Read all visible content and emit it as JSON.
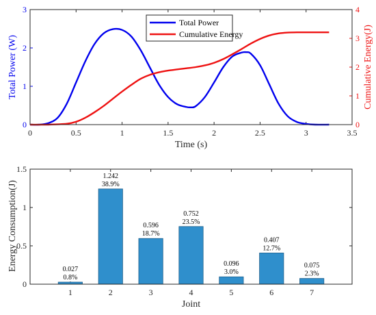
{
  "colors": {
    "power": "#0000EE",
    "energy": "#EE1111",
    "bar": "#2F8FCC",
    "bar_edge": "#1F5F8B",
    "axis": "#262626"
  },
  "chart_data": [
    {
      "type": "line",
      "xlabel": "Time (s)",
      "ylabel_left": "Total Power (W)",
      "ylabel_right": "Cumulative Energy(J)",
      "xlim": [
        0,
        3.5
      ],
      "ylim_left": [
        0,
        3
      ],
      "ylim_right": [
        0,
        4
      ],
      "x_ticks": [
        "0",
        "0.5",
        "1",
        "1.5",
        "2",
        "2.5",
        "3",
        "3.5"
      ],
      "y_left_ticks": [
        "0",
        "1",
        "2",
        "3"
      ],
      "y_right_ticks": [
        "0",
        "1",
        "2",
        "3",
        "4"
      ],
      "legend": "top-center",
      "grid": false,
      "series": [
        {
          "name": "Total Power",
          "axis": "left",
          "x": [
            0,
            0.1,
            0.2,
            0.3,
            0.4,
            0.5,
            0.6,
            0.7,
            0.8,
            0.9,
            1.0,
            1.1,
            1.2,
            1.3,
            1.4,
            1.5,
            1.6,
            1.7,
            1.75,
            1.8,
            1.9,
            2.0,
            2.1,
            2.2,
            2.3,
            2.35,
            2.4,
            2.5,
            2.6,
            2.7,
            2.8,
            2.9,
            3.0,
            3.1,
            3.25
          ],
          "y": [
            0,
            0.0,
            0.04,
            0.18,
            0.55,
            1.1,
            1.65,
            2.1,
            2.38,
            2.49,
            2.47,
            2.3,
            1.95,
            1.5,
            1.05,
            0.72,
            0.53,
            0.46,
            0.45,
            0.48,
            0.72,
            1.1,
            1.5,
            1.78,
            1.88,
            1.89,
            1.85,
            1.55,
            1.05,
            0.55,
            0.22,
            0.07,
            0.02,
            0.0,
            0.0
          ]
        },
        {
          "name": "Cumulative Energy",
          "axis": "right",
          "x": [
            0,
            0.2,
            0.4,
            0.5,
            0.6,
            0.7,
            0.8,
            0.9,
            1.0,
            1.1,
            1.2,
            1.3,
            1.4,
            1.5,
            1.6,
            1.7,
            1.8,
            1.9,
            2.0,
            2.1,
            2.2,
            2.3,
            2.4,
            2.5,
            2.6,
            2.7,
            2.8,
            2.9,
            3.0,
            3.25
          ],
          "y": [
            0,
            0.0,
            0.03,
            0.1,
            0.24,
            0.43,
            0.65,
            0.9,
            1.15,
            1.38,
            1.59,
            1.73,
            1.82,
            1.88,
            1.92,
            1.96,
            2.0,
            2.06,
            2.15,
            2.28,
            2.45,
            2.63,
            2.82,
            2.98,
            3.1,
            3.17,
            3.2,
            3.21,
            3.21,
            3.21
          ]
        }
      ]
    },
    {
      "type": "bar",
      "xlabel": "Joint",
      "ylabel": "Energy Consumption(J)",
      "ylim": [
        0,
        1.5
      ],
      "xlim": [
        0,
        8
      ],
      "y_ticks": [
        "0",
        "0.5",
        "1",
        "1.5"
      ],
      "grid": false,
      "categories": [
        "1",
        "2",
        "3",
        "4",
        "5",
        "6",
        "7"
      ],
      "values": [
        0.027,
        1.242,
        0.596,
        0.752,
        0.096,
        0.407,
        0.075
      ],
      "value_labels": [
        "0.027",
        "1.242",
        "0.596",
        "0.752",
        "0.096",
        "0.407",
        "0.075"
      ],
      "percent_labels": [
        "0.8%",
        "38.9%",
        "18.7%",
        "23.5%",
        "3.0%",
        "12.7%",
        "2.3%"
      ]
    }
  ]
}
